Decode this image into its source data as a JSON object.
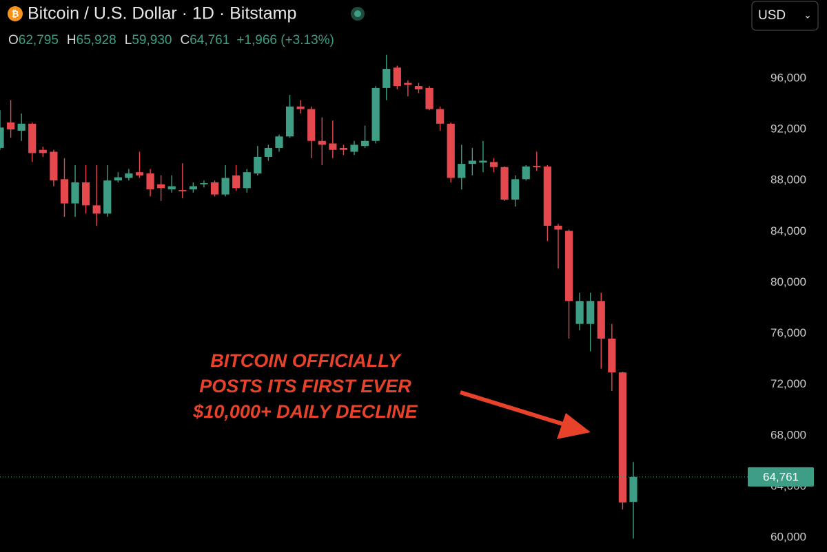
{
  "chart_data": {
    "type": "candlestick",
    "title": "Bitcoin / U.S. Dollar · 1D · Bitstamp",
    "currency": "USD",
    "ohlc_legend": [
      {
        "key": "O",
        "label": "62,795"
      },
      {
        "key": "H",
        "label": "65,928"
      },
      {
        "key": "L",
        "label": "59,930"
      },
      {
        "key": "C",
        "label": "64,761"
      }
    ],
    "change": "+1,966 (+3.13%)",
    "last_price": 64761,
    "last_price_label": "64,761",
    "annotation": [
      "BITCOIN OFFICIALLY",
      "POSTS ITS FIRST EVER",
      "$10,000+ DAILY DECLINE"
    ],
    "up_color": "#3e9e85",
    "down_color": "#e5484d",
    "annotation_color": "#e8432a",
    "ylim": [
      58870,
      102150
    ],
    "yticks": [
      {
        "value": 60000,
        "label": "60,000"
      },
      {
        "value": 64000,
        "label": "64,000"
      },
      {
        "value": 68000,
        "label": "68,000"
      },
      {
        "value": 72000,
        "label": "72,000"
      },
      {
        "value": 76000,
        "label": "76,000"
      },
      {
        "value": 80000,
        "label": "80,000"
      },
      {
        "value": 84000,
        "label": "84,000"
      },
      {
        "value": 88000,
        "label": "88,000"
      },
      {
        "value": 92000,
        "label": "92,000"
      },
      {
        "value": 96000,
        "label": "96,000"
      }
    ],
    "open": [
      90550,
      92550,
      91900,
      92450,
      90400,
      90250,
      88100,
      86200,
      87850,
      86050,
      85400,
      88000,
      88200,
      88650,
      88550,
      87700,
      87300,
      87250,
      87300,
      87700,
      87850,
      86900,
      88400,
      87400,
      88550,
      89850,
      90550,
      91450,
      93800,
      93600,
      91100,
      90900,
      90550,
      90250,
      90700,
      91100,
      95250,
      96850,
      95650,
      95400,
      95250,
      93600,
      92450,
      88200,
      89300,
      89400,
      89450,
      89050,
      86500,
      88100,
      89150,
      89100,
      84450,
      84050,
      76750,
      76750,
      78550,
      75600,
      72950,
      62795
    ],
    "high": [
      93500,
      94300,
      93250,
      92550,
      90650,
      90400,
      89750,
      89200,
      89200,
      89200,
      89200,
      88650,
      88900,
      90250,
      88900,
      88400,
      88400,
      89350,
      87850,
      88000,
      88000,
      89200,
      89200,
      88900,
      90700,
      90800,
      91600,
      94700,
      94300,
      93800,
      92950,
      92700,
      90800,
      91100,
      92300,
      95400,
      97850,
      97000,
      95850,
      95650,
      95400,
      93800,
      92550,
      90800,
      90550,
      91100,
      89750,
      89100,
      88400,
      89200,
      90250,
      89200,
      84600,
      84150,
      79200,
      79200,
      79200,
      76750,
      73000,
      65928
    ],
    "low": [
      90400,
      91350,
      91100,
      89450,
      89850,
      87550,
      85150,
      85150,
      85400,
      84450,
      85150,
      87850,
      88000,
      88200,
      86750,
      86400,
      87050,
      86600,
      87050,
      87450,
      86750,
      86750,
      87200,
      87050,
      88400,
      89550,
      90250,
      91350,
      93250,
      89750,
      89200,
      89750,
      90000,
      90000,
      90550,
      90900,
      94300,
      95150,
      94600,
      94850,
      93500,
      91900,
      87850,
      87300,
      88400,
      88650,
      88650,
      86400,
      85950,
      88000,
      88750,
      83250,
      81100,
      75600,
      76250,
      74600,
      73250,
      71500,
      62200,
      59930
    ],
    "close": [
      92150,
      92000,
      92450,
      90150,
      90150,
      88000,
      86200,
      87850,
      86050,
      85400,
      88000,
      88250,
      88550,
      88400,
      87300,
      87400,
      87550,
      87150,
      87550,
      87800,
      86900,
      88200,
      87400,
      88650,
      89850,
      90550,
      91450,
      93800,
      93600,
      91100,
      90800,
      90400,
      90400,
      90800,
      91100,
      95250,
      96750,
      95400,
      95500,
      95150,
      93600,
      92450,
      88200,
      89300,
      89550,
      89550,
      89050,
      86500,
      88100,
      89100,
      89050,
      84450,
      84150,
      78550,
      78550,
      78550,
      75600,
      72950,
      62750,
      64761
    ]
  }
}
